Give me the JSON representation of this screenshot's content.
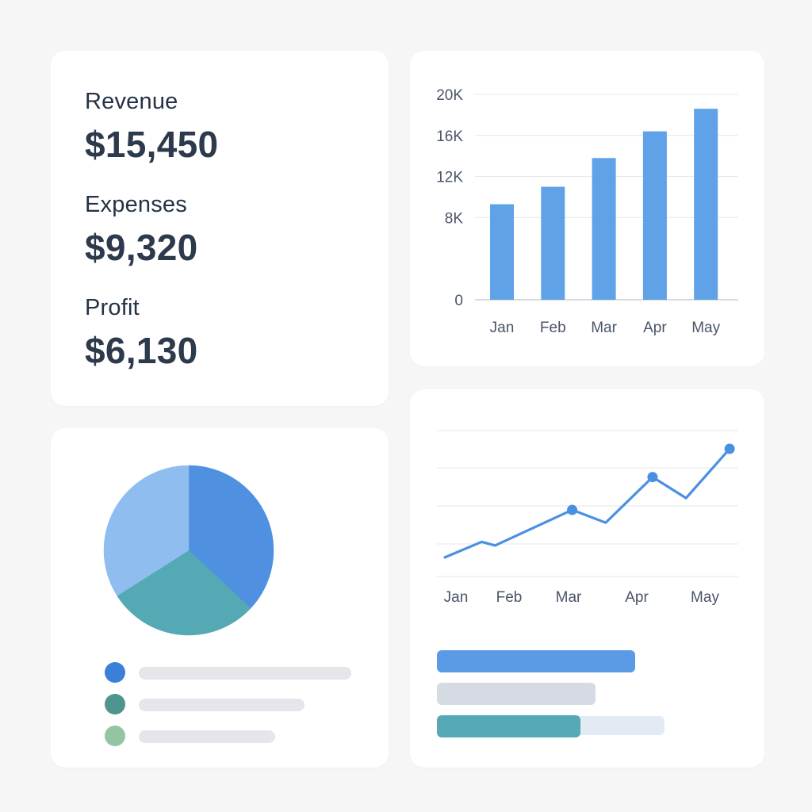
{
  "kpis": [
    {
      "label": "Revenue",
      "value": "$15,450"
    },
    {
      "label": "Expenses",
      "value": "$9,320"
    },
    {
      "label": "Profit",
      "value": "$6,130"
    }
  ],
  "colors": {
    "bar": "#5fa2e8",
    "line": "#4a90e2",
    "pie_light": "#8fbdf0",
    "pie_blue": "#4f90e0",
    "pie_teal": "#55a9b4",
    "legend_blue": "#3b7fd9",
    "legend_teal": "#4e9590",
    "legend_green": "#93c6a0",
    "progress_blue": "#5b9be6",
    "progress_gray": "#d6dbe3",
    "progress_teal": "#55a9b4",
    "progress_track": "#e2ebf3"
  },
  "chart_data": [
    {
      "type": "bar",
      "categories": [
        "Jan",
        "Feb",
        "Mar",
        "Apr",
        "May"
      ],
      "values": [
        9300,
        11000,
        13800,
        16400,
        18600
      ],
      "yticks": [
        {
          "value": 0,
          "label": "0"
        },
        {
          "value": 8000,
          "label": "8K"
        },
        {
          "value": 12000,
          "label": "12K"
        },
        {
          "value": 16000,
          "label": "16K"
        },
        {
          "value": 20000,
          "label": "20K"
        }
      ],
      "ylim": [
        0,
        20000
      ],
      "grid": true
    },
    {
      "type": "line",
      "categories": [
        "Jan",
        "Feb",
        "Mar",
        "Apr",
        "May"
      ],
      "points": [
        {
          "x": 0.0,
          "y": 2.1,
          "marker": false
        },
        {
          "x": 0.55,
          "y": 3.8,
          "marker": false
        },
        {
          "x": 0.75,
          "y": 3.4,
          "marker": false
        },
        {
          "x": 1.9,
          "y": 7.3,
          "marker": true
        },
        {
          "x": 2.4,
          "y": 5.9,
          "marker": false
        },
        {
          "x": 3.1,
          "y": 10.9,
          "marker": true
        },
        {
          "x": 3.6,
          "y": 8.6,
          "marker": false
        },
        {
          "x": 4.25,
          "y": 14.0,
          "marker": true
        }
      ],
      "ylim": [
        0,
        16
      ],
      "grid": true
    },
    {
      "type": "pie",
      "slices": [
        {
          "value": 37,
          "color_key": "pie_blue"
        },
        {
          "value": 29,
          "color_key": "pie_teal"
        },
        {
          "value": 34,
          "color_key": "pie_light"
        }
      ]
    }
  ],
  "legend": [
    {
      "color_key": "legend_blue",
      "fill": 0.87
    },
    {
      "color_key": "legend_teal",
      "fill": 0.68
    },
    {
      "color_key": "legend_green",
      "fill": 0.56
    }
  ],
  "progress": [
    {
      "color_key": "progress_blue",
      "fill": 0.8
    },
    {
      "color_key": "progress_gray",
      "fill": 0.64
    },
    {
      "color_key": "progress_teal",
      "fill": 0.58,
      "track": true
    }
  ]
}
